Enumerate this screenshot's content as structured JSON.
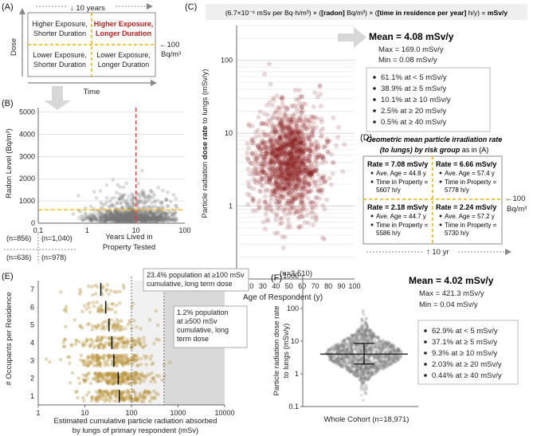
{
  "colors": {
    "red": "#8b1a1a",
    "gold": "#b8923a",
    "grey": "#777777",
    "dashRed": "#e0403a",
    "dashGold": "#f0b400"
  },
  "panelA": {
    "label": "(A)",
    "top_arrow": "↓ 10 years",
    "ylabel": "Dose",
    "xlabel": "Time",
    "right_note1": "←100",
    "right_note2": "Bq/m³",
    "q_tl1": "Higher Exposure,",
    "q_tl2": "Shorter Duration",
    "q_tr1": "Higher Exposure,",
    "q_tr2": "Longer Duration",
    "q_bl1": "Lower Exposure,",
    "q_bl2": "Shorter Duration",
    "q_br1": "Lower Exposure,",
    "q_br2": "Longer Duration"
  },
  "chart_data": [
    {
      "id": "B",
      "type": "scatter",
      "label": "(B)",
      "xlabel1": "Years Lived in",
      "xlabel2": "Property Tested",
      "ylabel": "Radon Level (Bq/m³)",
      "xscale": "log",
      "xlim": [
        0.1,
        100
      ],
      "ylim": [
        0,
        5200
      ],
      "xticks": [
        "0.1",
        "1",
        "10",
        "100"
      ],
      "yticks": [
        "0",
        "1000",
        "2000",
        "3000",
        "4000",
        "5000"
      ],
      "threshold_years": 10,
      "threshold_radon": 100,
      "counts": {
        "tl": "(n=856)",
        "tr": "(n=1,040)",
        "bl": "(n=636)",
        "br": "(n=978)"
      }
    },
    {
      "id": "C",
      "type": "scatter",
      "label": "(C)",
      "formula": "(6.7×10⁻⁶ mSv per Bq·h/m³) × ([radon] Bq/m³) × ([time in residence per year] h/y) = mSv/y",
      "xlabel": "Age of Respondent (y)",
      "ylabel": "Particle radiation dose rate to lungs (mSv/y)",
      "xlim": [
        10,
        100
      ],
      "ylim": [
        0.1,
        300
      ],
      "yscale": "log",
      "xticks": [
        "10",
        "20",
        "30",
        "40",
        "50",
        "60",
        "70",
        "80",
        "90",
        "100"
      ],
      "yticks": [
        "0.1",
        "1",
        "10",
        "100"
      ],
      "n": "(n=3,510)",
      "stats": {
        "mean": "Mean = 4.08 mSv/y",
        "max": "Max = 169.0 mSv/y",
        "min": "Min = 0.08 mSv/y"
      },
      "bullets": [
        "61.1% at < 5 mSv/y",
        "38.9% at ≥ 5 mSv/y",
        "10.1% at ≥ 10 mSv/y",
        "2.5% at ≥ 20 mSv/y",
        "0.5% at ≥ 40 mSv/y"
      ]
    },
    {
      "id": "E",
      "type": "scatter",
      "label": "(E)",
      "xlabel1": "Estimated cumulative particle radiation absorbed",
      "xlabel2": "by lungs of primary respondent (mSv)",
      "ylabel": "# Occupants per Residence",
      "xscale": "log",
      "xlim": [
        1,
        10000
      ],
      "xticks": [
        "1",
        "10",
        "100",
        "1000",
        "10000"
      ],
      "categories": [
        "1",
        "2",
        "3",
        "4",
        "5",
        "6",
        "7"
      ],
      "medians_mSv": [
        55,
        52,
        42,
        38,
        33,
        28,
        22
      ],
      "thresholds_mSv": [
        100,
        500
      ],
      "notes": {
        "a1": "23.4% population at ≥100 mSv",
        "a2": "cumulative, long term dose",
        "b1": "1.2% population",
        "b2": "at ≥500 mSv",
        "b3": "cumulative, long",
        "b4": "term dose"
      }
    },
    {
      "id": "F",
      "type": "scatter",
      "label": "(F)",
      "ylabel1": "Particle radiation dose rate",
      "ylabel2": "to lungs (mSv/y)",
      "yscale": "log",
      "ylim": [
        0.1,
        1000
      ],
      "yticks": [
        "0.1",
        "1",
        "10",
        "100",
        "1000"
      ],
      "category": "Whole Cohort (n=18,971)",
      "mean_value": 4.02,
      "sd_low": 2.0,
      "sd_high": 8.5,
      "stats": {
        "mean": "Mean = 4.02 mSv/y",
        "max": "Max = 421.3 mSv/y",
        "min": "Min = 0.04 mSv/y"
      },
      "bullets": [
        "62.9% at < 5 mSv/y",
        "37.1% at ≥ 5 mSv/y",
        "9.3% at ≥ 10 mSv/y",
        "2.03% at ≥ 20 mSv/y",
        "0.44% at ≥ 40 mSv/y"
      ]
    }
  ],
  "panelD": {
    "label": "(D)",
    "title1": "Geometric mean particle irradiation rate",
    "title2": "(to lungs) by risk group",
    "title_suffix": " as in (A)",
    "right_note1": "←100",
    "right_note2": "Bq/m³",
    "bottom_note": "↑ 10 yr",
    "cells": [
      {
        "rate": "Rate = 7.08 mSv/y",
        "age": "Ave. Age = 44.8 y",
        "t1": "Time in Property =",
        "t2": "5607 h/y"
      },
      {
        "rate": "Rate = 6.66 mSv/y",
        "age": "Ave. Age = 57.4 y",
        "t1": "Time in Property =",
        "t2": "5778 h/y"
      },
      {
        "rate": "Rate = 2.18 mSv/y",
        "age": "Ave. Age = 44.7 y",
        "t1": "Time in Property =",
        "t2": "5586 h/y"
      },
      {
        "rate": "Rate = 2.24 mSv/y",
        "age": "Ave. Age = 57.2 y",
        "t1": "Time in Property =",
        "t2": "5730 h/y"
      }
    ]
  }
}
